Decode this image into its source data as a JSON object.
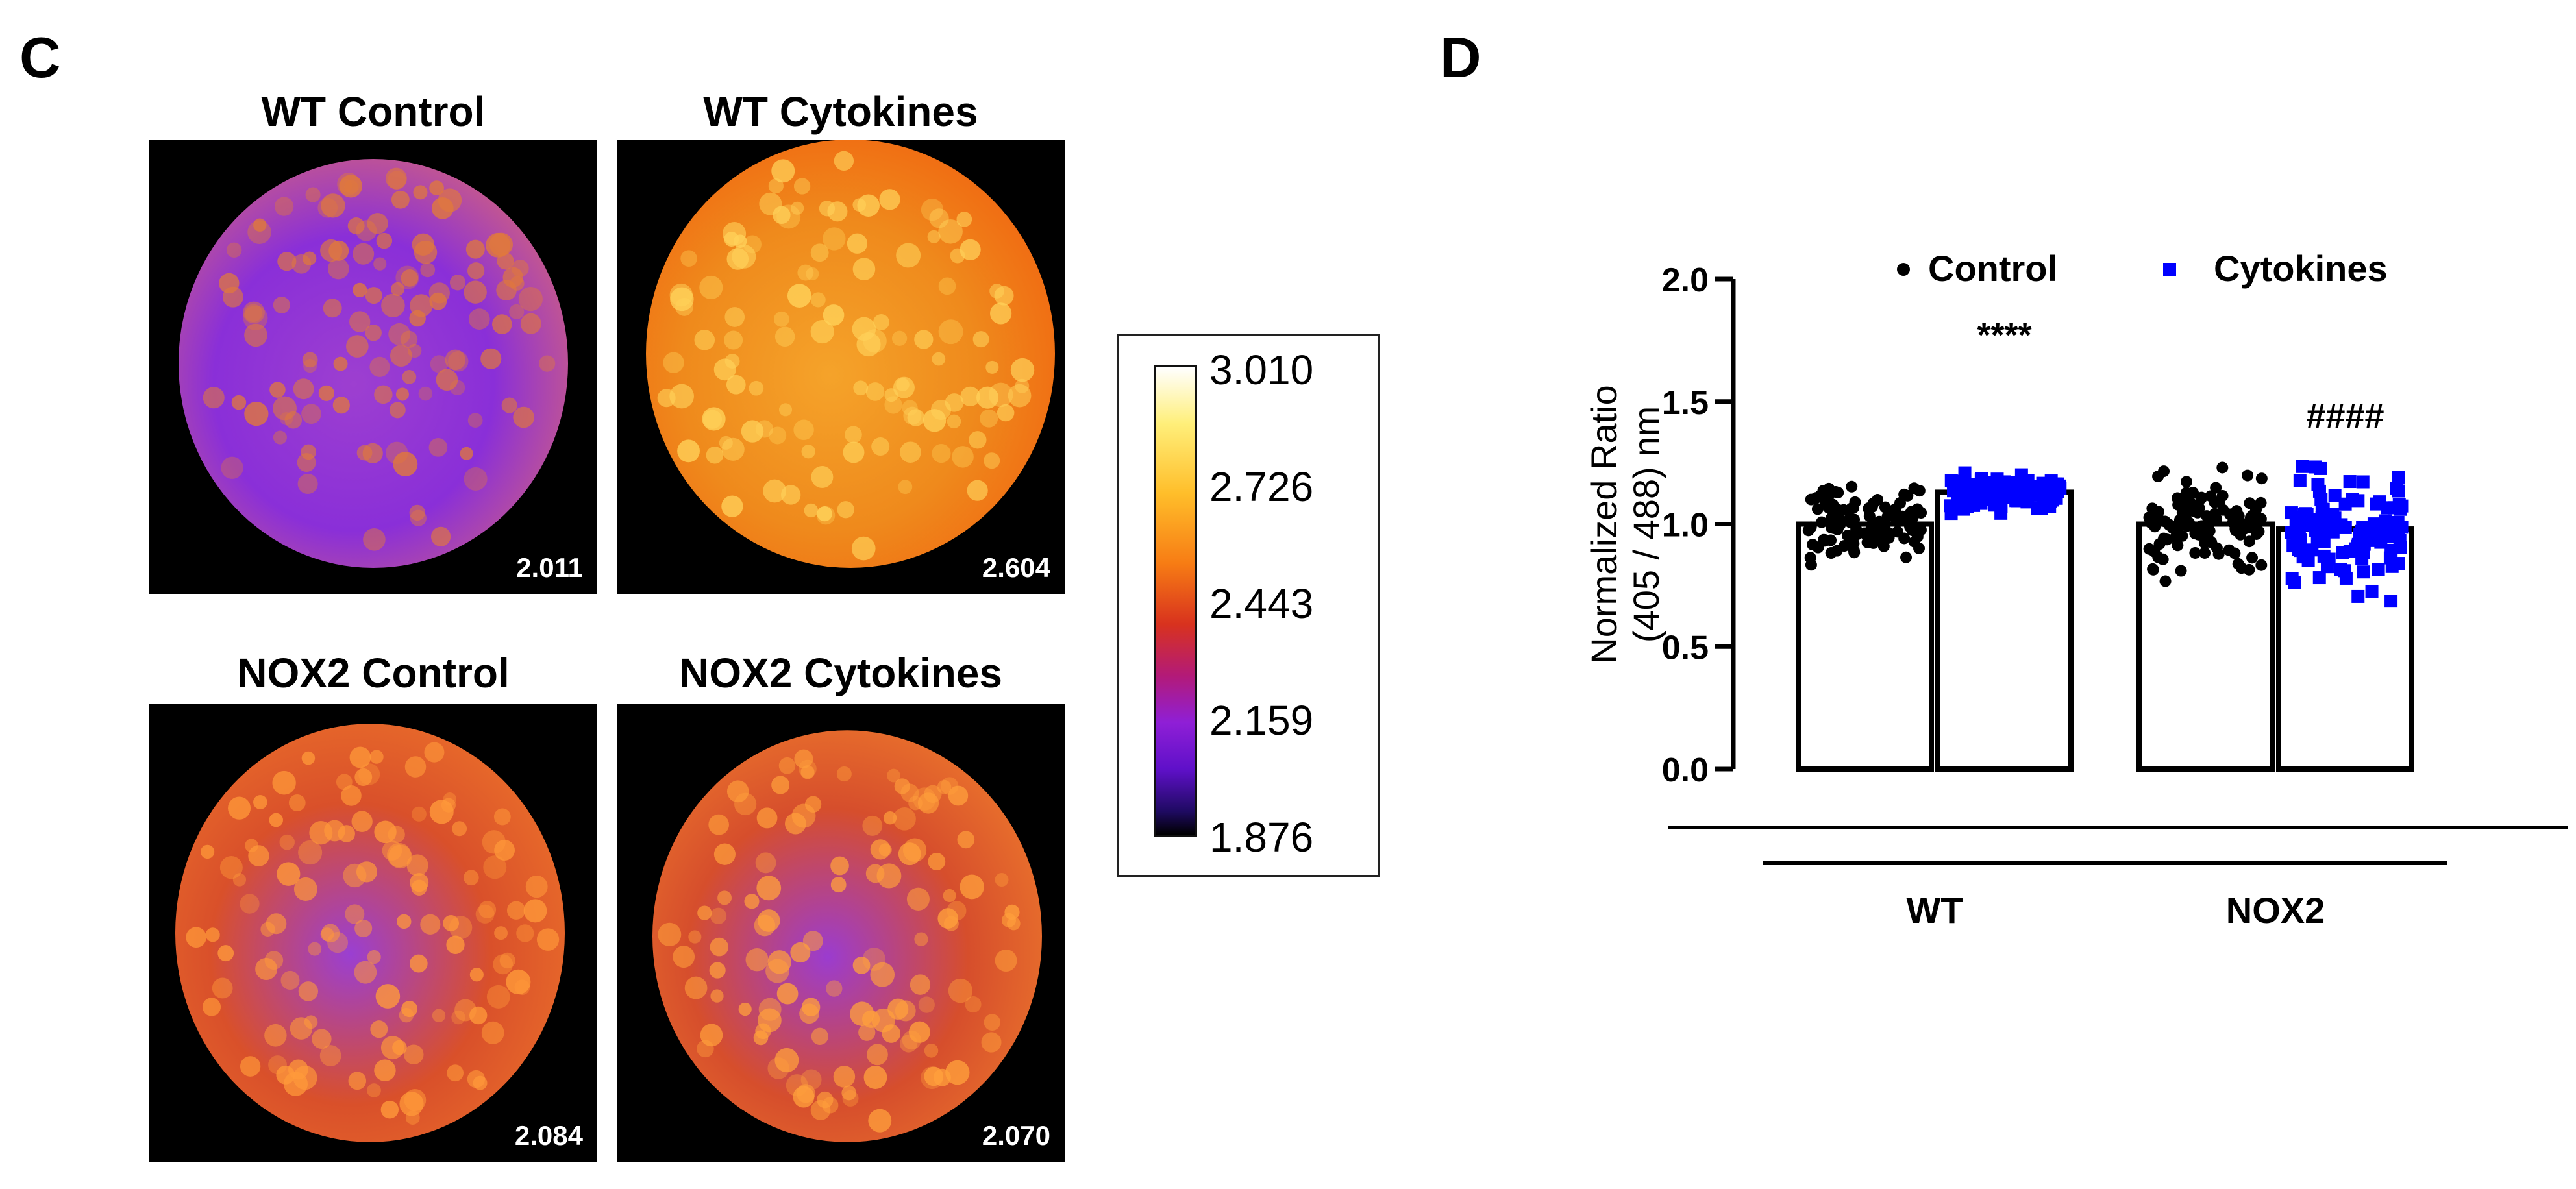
{
  "panels": {
    "c_label": "C",
    "d_label": "D"
  },
  "images": [
    {
      "title": "WT Control",
      "value": "2.011",
      "tone": "wt-control"
    },
    {
      "title": "WT Cytokines",
      "value": "2.604",
      "tone": "wt-cytokines"
    },
    {
      "title": "NOX2 Control",
      "value": "2.084",
      "tone": "nox2-control"
    },
    {
      "title": "NOX2 Cytokines",
      "value": "2.070",
      "tone": "nox2-cytokines"
    }
  ],
  "colorbar": {
    "labels": [
      "3.010",
      "2.726",
      "2.443",
      "2.159",
      "1.876"
    ],
    "colors": [
      "#ffffff",
      "#ffef7a",
      "#f77c14",
      "#8f1fd6",
      "#000000"
    ]
  },
  "chart_data": {
    "type": "bar",
    "title": "",
    "ylabel_line1": "Normalized Ratio",
    "ylabel_line2": "(405 / 488) nm",
    "ylim": [
      0,
      2.0
    ],
    "yticks": [
      "0.0",
      "0.5",
      "1.0",
      "1.5",
      "2.0"
    ],
    "ytick_values": [
      0,
      0.5,
      1.0,
      1.5,
      2.0
    ],
    "categories": [
      "WT",
      "NOX2"
    ],
    "series": [
      {
        "name": "Control",
        "values": [
          1.0,
          1.0
        ],
        "color": "#000000",
        "marker": "circle"
      },
      {
        "name": "Cytokines",
        "values": [
          1.13,
          0.98
        ],
        "color": "#0000ff",
        "marker": "square"
      }
    ],
    "annotations": [
      {
        "text": "****",
        "category": "WT",
        "series": "Cytokines",
        "y": 1.75
      },
      {
        "text": "####",
        "category": "NOX2",
        "series": "Cytokines",
        "y": 1.42
      }
    ],
    "legend_position": "top"
  }
}
